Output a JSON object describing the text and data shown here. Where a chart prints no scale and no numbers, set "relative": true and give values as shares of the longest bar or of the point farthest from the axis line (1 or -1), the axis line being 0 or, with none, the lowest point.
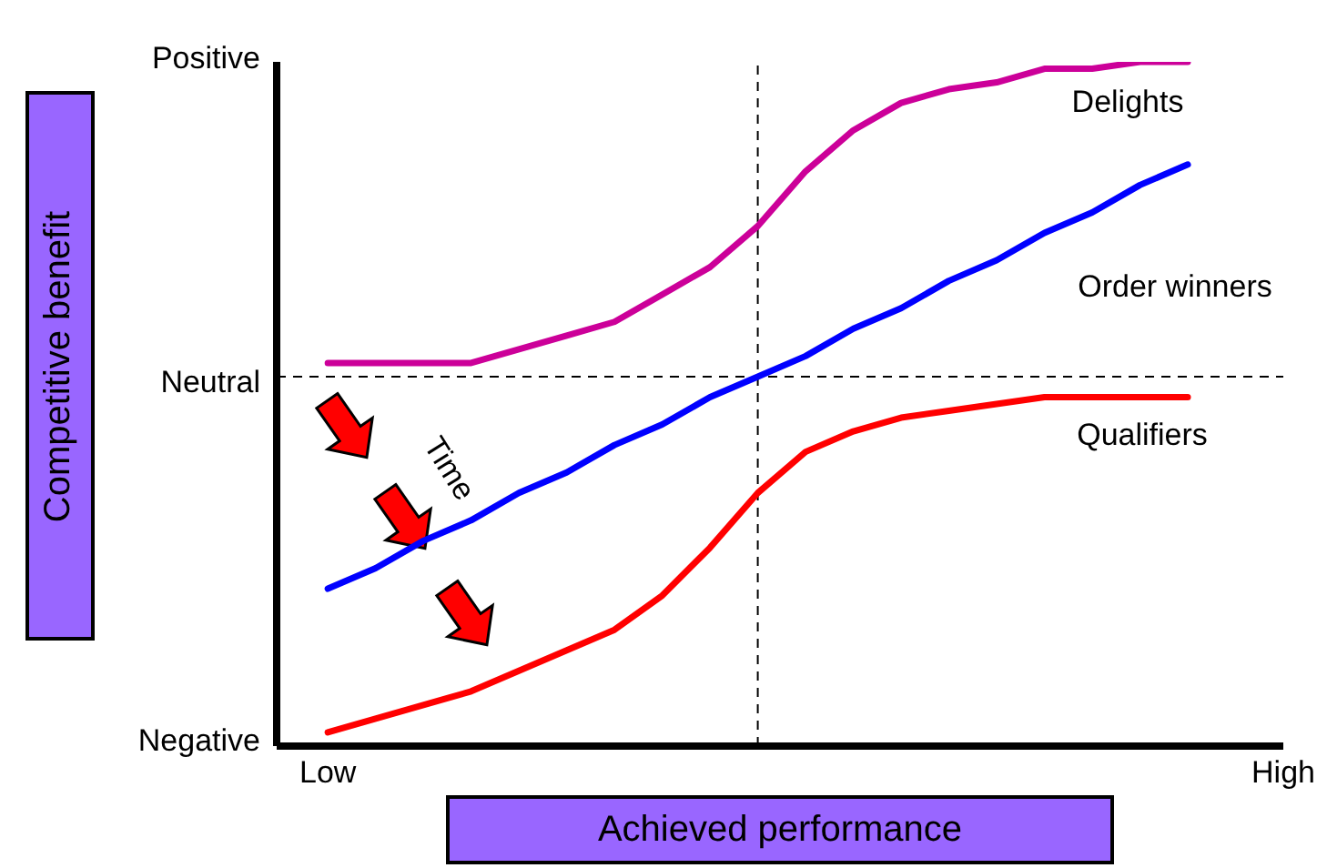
{
  "chart_data": {
    "type": "line",
    "relative": true,
    "xlabel": "Achieved performance",
    "annotations": [
      "Time",
      "Positive",
      "Neutral",
      "Negative",
      "Competitive benefit"
    ],
    "marker": "none",
    "line_style": "solid",
    "categories": [
      "Low",
      null,
      null,
      null,
      null,
      null,
      null,
      null,
      null,
      null,
      null,
      null,
      null,
      null,
      null,
      null,
      null,
      null,
      null,
      null,
      "High"
    ],
    "ref_lines": [
      {
        "axis": "y",
        "value": 0.54,
        "line_style": "dashed",
        "color": "#000000"
      }
    ],
    "series": [
      {
        "name": "Delights",
        "color": "#cc0099",
        "values": [
          0.56,
          0.56,
          0.56,
          0.56,
          0.58,
          0.6,
          0.62,
          0.66,
          0.7,
          0.76,
          0.84,
          0.9,
          0.94,
          0.96,
          0.97,
          0.99,
          0.99,
          1,
          1,
          null,
          null
        ]
      },
      {
        "name": "Order winners",
        "color": "#0000ff",
        "values": [
          0.23,
          0.26,
          0.3,
          0.33,
          0.37,
          0.4,
          0.44,
          0.47,
          0.51,
          0.54,
          0.57,
          0.61,
          0.64,
          0.68,
          0.71,
          0.75,
          0.78,
          0.82,
          0.85,
          null,
          null
        ]
      },
      {
        "name": "Qualifiers",
        "color": "#ff0000",
        "values": [
          0.02,
          0.04,
          0.06,
          0.08,
          0.11,
          0.14,
          0.17,
          0.22,
          0.29,
          0.37,
          0.43,
          0.46,
          0.48,
          0.49,
          0.5,
          0.51,
          0.51,
          0.51,
          0.51,
          null,
          null
        ]
      }
    ]
  }
}
